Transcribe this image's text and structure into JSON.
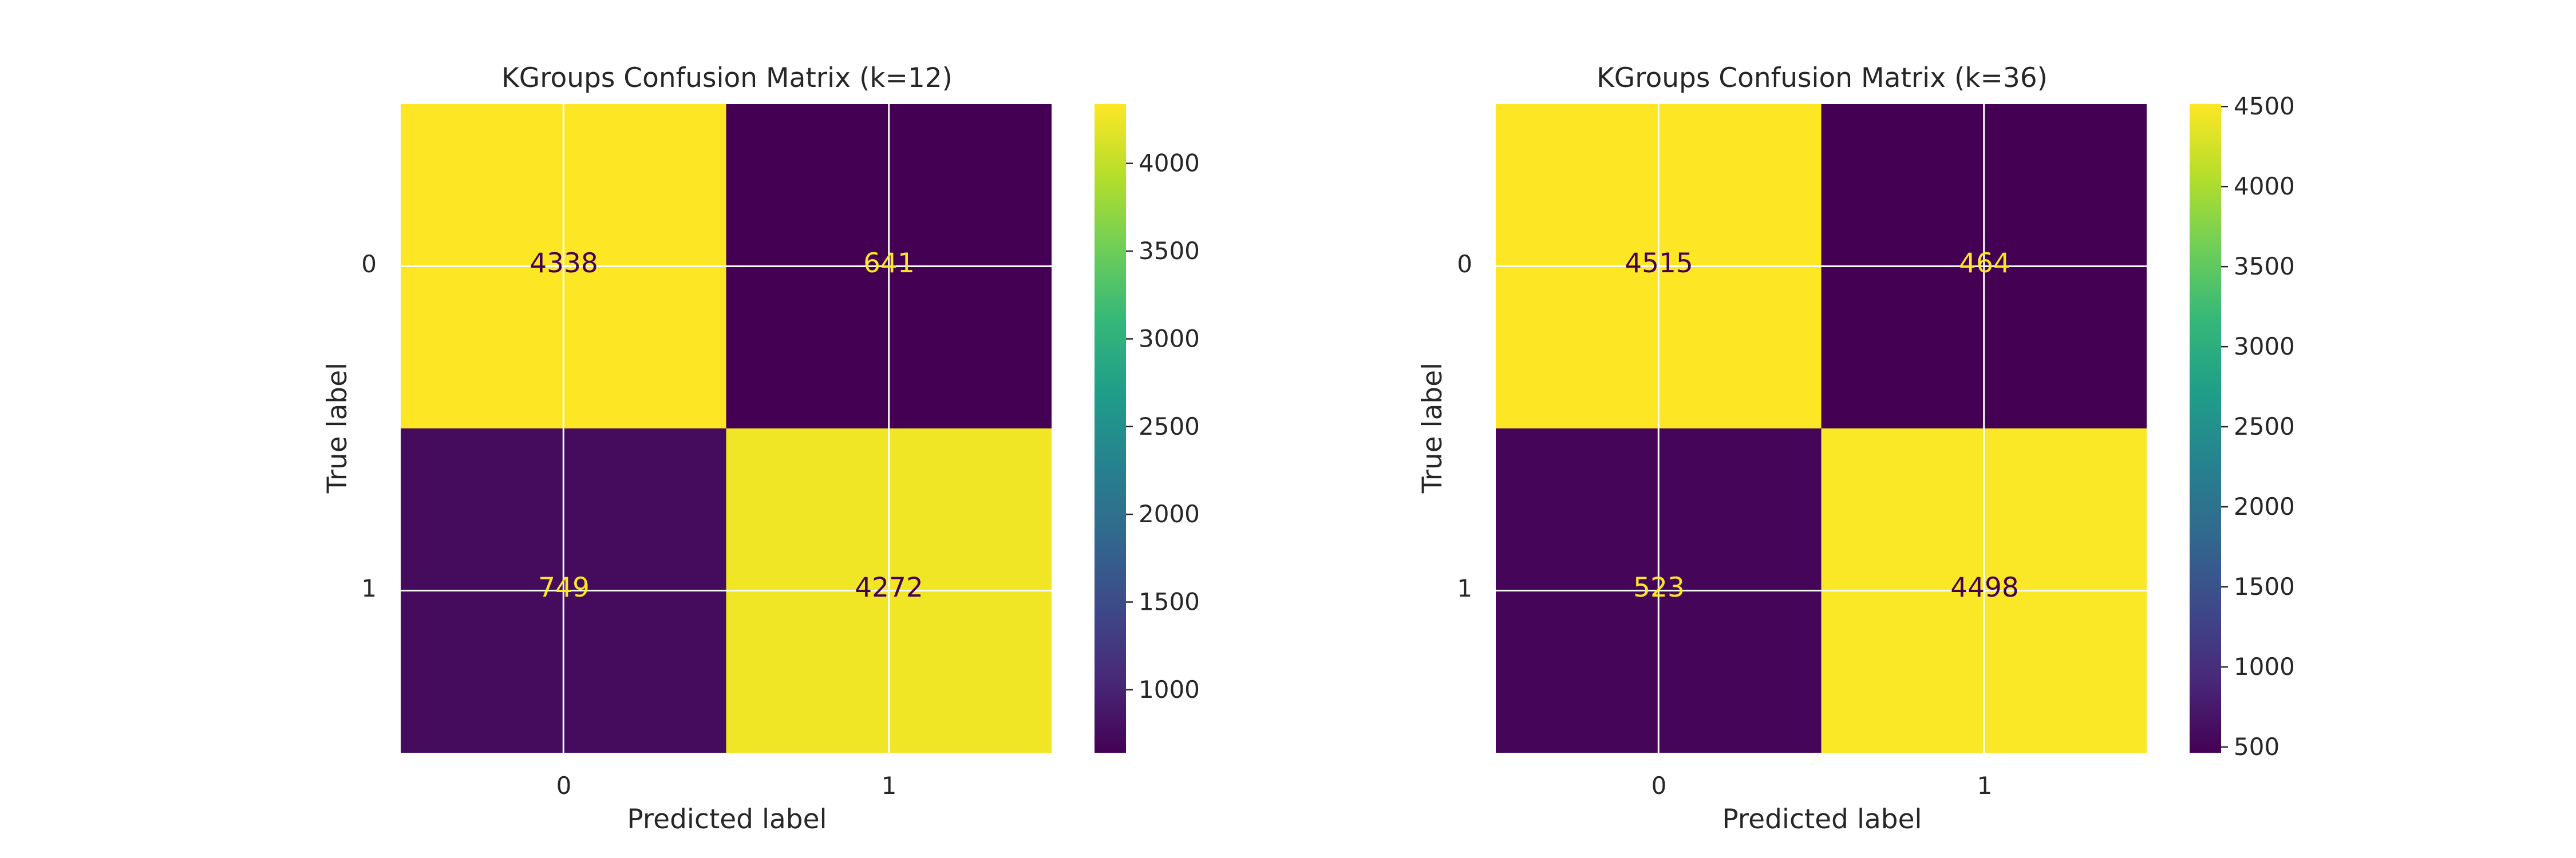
{
  "chart_data": [
    {
      "type": "heatmap",
      "title": "KGroups Confusion Matrix (k=12)",
      "xlabel": "Predicted label",
      "ylabel": "True label",
      "x_categories": [
        "0",
        "1"
      ],
      "y_categories": [
        "0",
        "1"
      ],
      "values": [
        [
          4338,
          641
        ],
        [
          749,
          4272
        ]
      ],
      "colormap": "viridis",
      "color_range": [
        641,
        4338
      ],
      "colorbar_ticks": [
        1000,
        1500,
        2000,
        2500,
        3000,
        3500,
        4000
      ],
      "grid": true
    },
    {
      "type": "heatmap",
      "title": "KGroups Confusion Matrix (k=36)",
      "xlabel": "Predicted label",
      "ylabel": "True label",
      "x_categories": [
        "0",
        "1"
      ],
      "y_categories": [
        "0",
        "1"
      ],
      "values": [
        [
          4515,
          464
        ],
        [
          523,
          4498
        ]
      ],
      "colormap": "viridis",
      "color_range": [
        464,
        4515
      ],
      "colorbar_ticks": [
        500,
        1000,
        1500,
        2000,
        2500,
        3000,
        3500,
        4000,
        4500
      ],
      "grid": true
    }
  ],
  "colors": {
    "text_on_light": "#440154",
    "text_on_dark": "#fde725",
    "gridline": "#ffffff",
    "axis_text": "#262626"
  }
}
